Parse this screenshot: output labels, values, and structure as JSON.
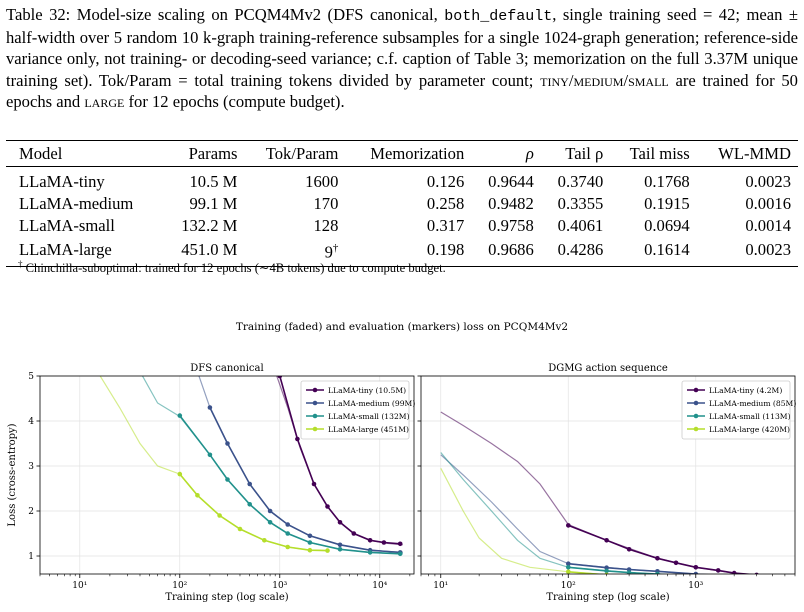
{
  "caption": {
    "p1": "Table 32: Model-size scaling on PCQM4Mv2 (DFS canonical, ",
    "code1": "both_default",
    "p2": ", single training seed = 42; mean ± half-width over 5 random 10 k-graph training-reference subsamples for a single 1024-graph generation; reference-side variance only, not training- or decoding-seed variance; c.f. caption of Table 3; memorization on the full 3.37M unique training set). Tok/Param = total training tokens divided by parameter count; ",
    "sc1": "tiny",
    "s1": "/",
    "sc2": "medium",
    "s2": "/",
    "sc3": "small",
    "p3": " are trained for 50 epochs and ",
    "sc4": "large",
    "p4": " for 12 epochs (compute budget)."
  },
  "table": {
    "headers": [
      "Model",
      "Params",
      "Tok/Param",
      "Memorization",
      "ρ",
      "Tail ρ",
      "Tail miss",
      "WL-MMD"
    ],
    "rows": [
      [
        "LLaMA-tiny",
        "10.5 M",
        "1600",
        "0.126",
        "0.9644",
        "0.3740",
        "0.1768",
        "0.0023"
      ],
      [
        "LLaMA-medium",
        "99.1 M",
        "170",
        "0.258",
        "0.9482",
        "0.3355",
        "0.1915",
        "0.0016"
      ],
      [
        "LLaMA-small",
        "132.2 M",
        "128",
        "0.317",
        "0.9758",
        "0.4061",
        "0.0694",
        "0.0014"
      ],
      [
        "LLaMA-large",
        "451.0 M",
        "9",
        "0.198",
        "0.9686",
        "0.4286",
        "0.1614",
        "0.0023"
      ]
    ],
    "dagger": "†"
  },
  "footnote": {
    "mark": "†",
    "text": " Chinchilla-suboptimal: trained for 12 epochs (∼4B tokens) due to compute budget."
  },
  "figure": {
    "suptitle": "Training (faded) and evaluation (markers) loss on PCQM4Mv2"
  },
  "chart_data": [
    {
      "type": "line",
      "title": "DFS canonical",
      "xlabel": "Training step (log scale)",
      "ylabel": "Loss (cross-entropy)",
      "xscale": "log",
      "xlim": [
        4,
        22000
      ],
      "ylim": [
        0.6,
        5
      ],
      "xticks": [
        10,
        100,
        1000,
        10000
      ],
      "xtick_labels": [
        "10¹",
        "10²",
        "10³",
        "10⁴"
      ],
      "yticks": [
        1,
        2,
        3,
        4,
        5
      ],
      "ytick_labels": [
        "1",
        "2",
        "3",
        "4",
        "5"
      ],
      "grid": true,
      "legend_position": "top-right",
      "series": [
        {
          "name": "LLaMA-tiny (10.5M)",
          "color": "#440154",
          "train": [
            [
              900,
              5.1
            ],
            [
              1200,
              4.3
            ],
            [
              1600,
              3.4
            ],
            [
              2200,
              2.6
            ],
            [
              3000,
              2.1
            ],
            [
              4000,
              1.75
            ],
            [
              5500,
              1.5
            ],
            [
              8000,
              1.35
            ],
            [
              12000,
              1.28
            ],
            [
              17000,
              1.25
            ]
          ],
          "eval": [
            [
              1000,
              5.0
            ],
            [
              1500,
              3.6
            ],
            [
              2200,
              2.6
            ],
            [
              3000,
              2.1
            ],
            [
              4000,
              1.75
            ],
            [
              5500,
              1.5
            ],
            [
              8000,
              1.35
            ],
            [
              11000,
              1.3
            ],
            [
              16000,
              1.27
            ]
          ]
        },
        {
          "name": "LLaMA-medium (99M)",
          "color": "#3b528b",
          "train": [
            [
              150,
              5.1
            ],
            [
              200,
              4.3
            ],
            [
              300,
              3.5
            ],
            [
              500,
              2.6
            ],
            [
              800,
              2.0
            ],
            [
              1200,
              1.7
            ],
            [
              2000,
              1.45
            ],
            [
              4000,
              1.25
            ],
            [
              8000,
              1.13
            ],
            [
              17000,
              1.08
            ]
          ],
          "eval": [
            [
              200,
              4.3
            ],
            [
              300,
              3.5
            ],
            [
              500,
              2.6
            ],
            [
              800,
              2.0
            ],
            [
              1200,
              1.7
            ],
            [
              2000,
              1.45
            ],
            [
              4000,
              1.25
            ],
            [
              8000,
              1.13
            ],
            [
              16000,
              1.08
            ]
          ]
        },
        {
          "name": "LLaMA-small (132M)",
          "color": "#21918c",
          "train": [
            [
              40,
              5.1
            ],
            [
              60,
              4.4
            ],
            [
              100,
              4.1
            ],
            [
              200,
              3.25
            ],
            [
              300,
              2.7
            ],
            [
              500,
              2.15
            ],
            [
              800,
              1.75
            ],
            [
              1200,
              1.5
            ],
            [
              2000,
              1.3
            ],
            [
              4000,
              1.15
            ],
            [
              8000,
              1.08
            ],
            [
              17000,
              1.05
            ]
          ],
          "eval": [
            [
              100,
              4.12
            ],
            [
              200,
              3.25
            ],
            [
              300,
              2.7
            ],
            [
              500,
              2.15
            ],
            [
              800,
              1.75
            ],
            [
              1200,
              1.5
            ],
            [
              2000,
              1.3
            ],
            [
              4000,
              1.15
            ],
            [
              8000,
              1.08
            ],
            [
              16000,
              1.05
            ]
          ]
        },
        {
          "name": "LLaMA-large (451M)",
          "color": "#b5de2b",
          "train": [
            [
              15,
              5.1
            ],
            [
              25,
              4.3
            ],
            [
              40,
              3.5
            ],
            [
              60,
              3.0
            ],
            [
              100,
              2.82
            ],
            [
              150,
              2.35
            ],
            [
              250,
              1.9
            ],
            [
              400,
              1.6
            ],
            [
              700,
              1.35
            ],
            [
              1200,
              1.2
            ],
            [
              2000,
              1.13
            ],
            [
              3000,
              1.12
            ]
          ],
          "eval": [
            [
              100,
              2.82
            ],
            [
              150,
              2.35
            ],
            [
              250,
              1.9
            ],
            [
              400,
              1.6
            ],
            [
              700,
              1.35
            ],
            [
              1200,
              1.2
            ],
            [
              2000,
              1.13
            ],
            [
              3000,
              1.12
            ]
          ]
        }
      ]
    },
    {
      "type": "line",
      "title": "DGMG action sequence",
      "xlabel": "Training step (log scale)",
      "ylabel": "",
      "xscale": "log",
      "xlim": [
        7,
        6000
      ],
      "ylim": [
        0.6,
        5
      ],
      "xticks": [
        10,
        100,
        1000
      ],
      "xtick_labels": [
        "10¹",
        "10²",
        "10³"
      ],
      "yticks": [
        1,
        2,
        3,
        4,
        5
      ],
      "grid": true,
      "legend_position": "top-right",
      "series": [
        {
          "name": "LLaMA-tiny (4.2M)",
          "color": "#440154",
          "train": [
            [
              10,
              4.2
            ],
            [
              15,
              3.9
            ],
            [
              25,
              3.5
            ],
            [
              40,
              3.1
            ],
            [
              60,
              2.6
            ],
            [
              100,
              1.7
            ],
            [
              200,
              1.35
            ],
            [
              500,
              0.95
            ],
            [
              1000,
              0.75
            ],
            [
              2000,
              0.62
            ],
            [
              4000,
              0.55
            ]
          ],
          "eval": [
            [
              100,
              1.68
            ],
            [
              200,
              1.35
            ],
            [
              300,
              1.15
            ],
            [
              500,
              0.95
            ],
            [
              700,
              0.85
            ],
            [
              1000,
              0.75
            ],
            [
              1500,
              0.68
            ],
            [
              2000,
              0.62
            ],
            [
              3000,
              0.58
            ],
            [
              4000,
              0.55
            ]
          ]
        },
        {
          "name": "LLaMA-medium (85M)",
          "color": "#3b528b",
          "train": [
            [
              10,
              3.25
            ],
            [
              15,
              2.8
            ],
            [
              25,
              2.2
            ],
            [
              40,
              1.6
            ],
            [
              60,
              1.1
            ],
            [
              100,
              0.83
            ],
            [
              300,
              0.7
            ],
            [
              1000,
              0.6
            ],
            [
              4000,
              0.52
            ]
          ],
          "eval": [
            [
              100,
              0.83
            ],
            [
              200,
              0.74
            ],
            [
              300,
              0.7
            ],
            [
              500,
              0.66
            ],
            [
              1000,
              0.6
            ],
            [
              2000,
              0.55
            ],
            [
              4000,
              0.52
            ]
          ]
        },
        {
          "name": "LLaMA-small (113M)",
          "color": "#21918c",
          "train": [
            [
              10,
              3.3
            ],
            [
              15,
              2.7
            ],
            [
              25,
              2.0
            ],
            [
              40,
              1.35
            ],
            [
              60,
              0.95
            ],
            [
              100,
              0.75
            ],
            [
              300,
              0.63
            ],
            [
              1000,
              0.55
            ],
            [
              4000,
              0.48
            ]
          ],
          "eval": [
            [
              100,
              0.75
            ],
            [
              200,
              0.67
            ],
            [
              300,
              0.63
            ],
            [
              500,
              0.6
            ],
            [
              1000,
              0.55
            ],
            [
              2000,
              0.5
            ],
            [
              4000,
              0.48
            ]
          ]
        },
        {
          "name": "LLaMA-large (420M)",
          "color": "#b5de2b",
          "train": [
            [
              10,
              2.95
            ],
            [
              15,
              2.0
            ],
            [
              20,
              1.4
            ],
            [
              30,
              0.95
            ],
            [
              50,
              0.75
            ],
            [
              100,
              0.65
            ],
            [
              300,
              0.55
            ],
            [
              1000,
              0.5
            ],
            [
              4000,
              0.46
            ]
          ],
          "eval": [
            [
              100,
              0.65
            ],
            [
              200,
              0.58
            ],
            [
              300,
              0.55
            ],
            [
              500,
              0.53
            ],
            [
              1000,
              0.5
            ],
            [
              2000,
              0.47
            ],
            [
              4000,
              0.46
            ]
          ]
        }
      ]
    }
  ]
}
